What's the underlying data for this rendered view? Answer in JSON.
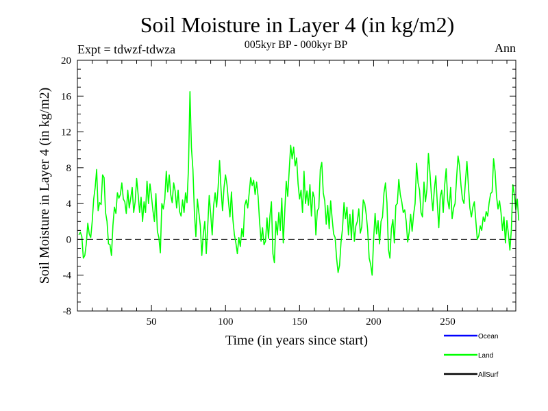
{
  "chart_data": {
    "type": "line",
    "title": "Soil Moisture in Layer 4 (in kg/m2)",
    "subtitle": "005kyr BP - 000kyr BP",
    "expt_label": "Expt = tdwzf-tdwza",
    "season_label": "Ann",
    "xlabel": "Time (in years since start)",
    "ylabel": "Soil Moisture in Layer 4 (in kg/m2)",
    "xlim": [
      0,
      296
    ],
    "ylim": [
      -8,
      20
    ],
    "x_ticks": [
      50,
      100,
      150,
      200,
      250
    ],
    "y_ticks": [
      -8,
      -4,
      0,
      4,
      8,
      12,
      16,
      20
    ],
    "zero_line": true,
    "legend_position": "bottom-right",
    "legend": [
      {
        "name": "Ocean",
        "color": "#0000ff"
      },
      {
        "name": "Land",
        "color": "#00ff00"
      },
      {
        "name": "AllSurf",
        "color": "#000000"
      }
    ],
    "series": [
      {
        "name": "Land",
        "color": "#00ff00",
        "x_start": 1,
        "x_step": 1,
        "values": [
          0.5,
          0.8,
          0.3,
          -2.1,
          -1.8,
          -0.5,
          1.8,
          0.6,
          0.2,
          2.0,
          4.5,
          5.8,
          7.8,
          3.2,
          4.1,
          3.9,
          7.2,
          6.9,
          3.0,
          2.0,
          -0.5,
          -0.6,
          -1.8,
          1.6,
          3.6,
          2.9,
          5.2,
          4.6,
          5.0,
          6.3,
          4.5,
          4.2,
          2.9,
          5.5,
          3.5,
          4.6,
          5.8,
          3.0,
          4.2,
          6.8,
          5.0,
          3.0,
          4.7,
          2.0,
          4.2,
          3.0,
          6.5,
          4.0,
          6.2,
          4.8,
          3.2,
          2.0,
          5.1,
          0.9,
          0.2,
          -1.5,
          4.0,
          3.4,
          4.5,
          7.6,
          5.3,
          7.2,
          5.0,
          4.1,
          6.3,
          5.4,
          3.5,
          5.5,
          3.1,
          2.6,
          4.4,
          3.0,
          5.2,
          4.1,
          8.0,
          16.5,
          10.2,
          7.8,
          3.0,
          0.3,
          4.5,
          3.0,
          1.5,
          -1.8,
          0.6,
          2.0,
          -1.6,
          1.5,
          4.9,
          2.8,
          0.5,
          3.8,
          5.2,
          3.6,
          5.8,
          8.8,
          5.5,
          3.2,
          5.8,
          7.2,
          6.1,
          4.2,
          2.5,
          5.3,
          2.2,
          0.5,
          -0.4,
          -1.6,
          0.2,
          -0.8,
          1.2,
          0.3,
          3.8,
          4.4,
          3.5,
          5.2,
          6.9,
          6.0,
          6.6,
          5.0,
          6.4,
          4.8,
          2.0,
          -0.2,
          1.3,
          -0.6,
          -0.2,
          2.4,
          0.1,
          2.6,
          4.2,
          -1.6,
          -2.6,
          2.0,
          0.5,
          3.0,
          1.0,
          4.6,
          -0.4,
          3.1,
          6.5,
          4.8,
          7.7,
          10.5,
          9.0,
          10.3,
          8.2,
          9.1,
          6.2,
          4.5,
          5.5,
          3.0,
          7.6,
          4.0,
          5.4,
          3.8,
          6.1,
          2.6,
          5.3,
          4.6,
          0.5,
          3.2,
          3.5,
          7.8,
          8.6,
          5.2,
          4.3,
          1.7,
          3.8,
          1.2,
          4.3,
          2.3,
          0.6,
          0.2,
          -2.1,
          -3.7,
          -2.9,
          -0.3,
          1.2,
          4.1,
          2.3,
          3.6,
          0.5,
          2.8,
          0.1,
          3.3,
          -0.2,
          1.5,
          2.0,
          3.4,
          0.7,
          1.4,
          4.4,
          4.0,
          2.8,
          1.0,
          -2.1,
          -2.8,
          -4.0,
          0.0,
          2.9,
          0.6,
          2.1,
          -0.5,
          2.0,
          2.5,
          5.2,
          6.3,
          4.1,
          -1.1,
          -2.1,
          1.2,
          2.2,
          -0.4,
          3.8,
          4.0,
          6.7,
          5.0,
          4.2,
          3.0,
          3.3,
          2.0,
          -0.3,
          0.8,
          2.8,
          0.9,
          2.8,
          4.0,
          8.5,
          6.3,
          5.5,
          3.0,
          2.5,
          6.4,
          4.2,
          5.6,
          9.6,
          7.5,
          5.0,
          3.2,
          5.6,
          7.1,
          4.0,
          1.3,
          4.8,
          5.5,
          3.0,
          6.1,
          7.9,
          4.4,
          3.4,
          5.8,
          2.3,
          3.5,
          4.0,
          6.8,
          9.3,
          8.2,
          6.0,
          4.5,
          4.0,
          6.5,
          8.7,
          6.0,
          3.5,
          2.5,
          3.6,
          4.2,
          2.1,
          0.0,
          0.4,
          1.5,
          1.0,
          2.5,
          2.0,
          3.1,
          2.6,
          4.1,
          5.1,
          5.3,
          9.0,
          7.6,
          4.8,
          3.4,
          4.3,
          3.0,
          1.0,
          2.5,
          -0.4,
          2.1,
          0.6,
          -1.2,
          1.1,
          6.1,
          5.0,
          3.3,
          4.5,
          2.1
        ]
      }
    ]
  }
}
